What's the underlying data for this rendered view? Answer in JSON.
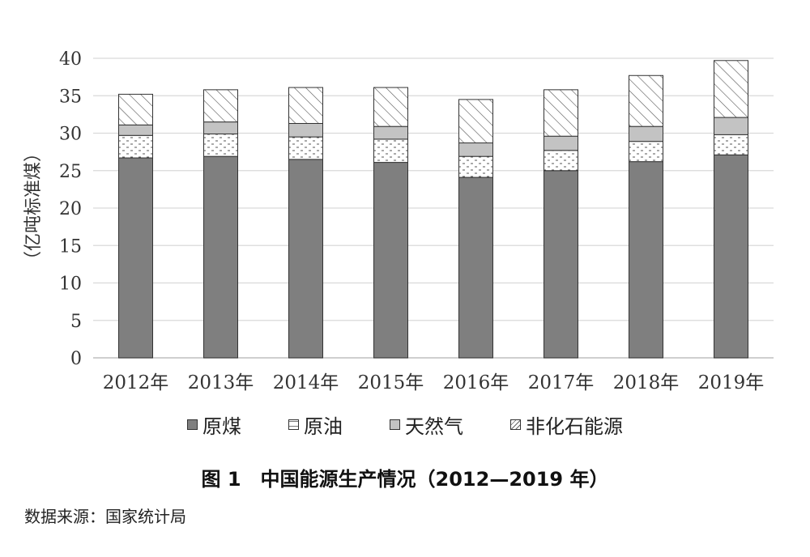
{
  "chart_data": {
    "type": "bar",
    "stacked": true,
    "categories": [
      "2012年",
      "2013年",
      "2014年",
      "2015年",
      "2016年",
      "2017年",
      "2018年",
      "2019年"
    ],
    "series": [
      {
        "name": "原煤",
        "values": [
          26.7,
          26.9,
          26.5,
          26.1,
          24.1,
          25.0,
          26.2,
          27.1
        ],
        "pattern": "solid-dark"
      },
      {
        "name": "原油",
        "values": [
          3.0,
          3.0,
          3.0,
          3.1,
          2.8,
          2.7,
          2.7,
          2.7
        ],
        "pattern": "dots"
      },
      {
        "name": "天然气",
        "values": [
          1.4,
          1.6,
          1.8,
          1.7,
          1.8,
          1.9,
          2.0,
          2.3
        ],
        "pattern": "solid-light"
      },
      {
        "name": "非化石能源",
        "values": [
          4.1,
          4.3,
          4.8,
          5.2,
          5.8,
          6.2,
          6.8,
          7.6
        ],
        "pattern": "hatch"
      }
    ],
    "ylabel": "（亿吨标准煤）",
    "ylim": [
      0,
      40
    ],
    "yticks": [
      0,
      5,
      10,
      15,
      20,
      25,
      30,
      35,
      40
    ],
    "grid": true,
    "legend": "bottom"
  },
  "colors": {
    "coal": "#7f7f7f",
    "gas": "#c3c3c3",
    "grid": "#d9d9d9",
    "outline": "#333333"
  },
  "caption": "图 1　中国能源生产情况（2012—2019 年）",
  "source": "数据来源：国家统计局"
}
